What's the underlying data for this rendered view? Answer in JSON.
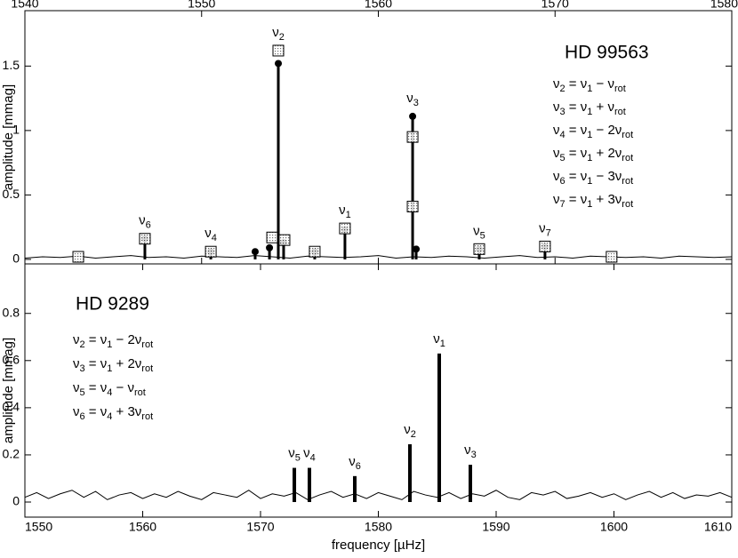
{
  "chart_data": [
    {
      "type": "stem",
      "title": "HD 99563",
      "ylabel": "amplitude [mmag]",
      "xaxis_position": "top",
      "xlim": [
        1540,
        1580
      ],
      "xticks": [
        1540,
        1550,
        1560,
        1570,
        1580
      ],
      "ylim": [
        -0.035,
        1.93
      ],
      "yticks": [
        0,
        {
          "value": 0.5,
          "label": "0.5"
        },
        1,
        {
          "value": 1.5,
          "label": "1.5"
        }
      ],
      "equations": [
        [
          "ν",
          "2",
          " = ν",
          "1",
          " − ν",
          "rot"
        ],
        [
          "ν",
          "3",
          " = ν",
          "1",
          " + ν",
          "rot"
        ],
        [
          "ν",
          "4",
          " = ν",
          "1",
          " − 2ν",
          "rot"
        ],
        [
          "ν",
          "5",
          " = ν",
          "1",
          " + 2ν",
          "rot"
        ],
        [
          "ν",
          "6",
          " = ν",
          "1",
          " − 3ν",
          "rot"
        ],
        [
          "ν",
          "7",
          " = ν",
          "1",
          " + 3ν",
          "rot"
        ]
      ],
      "peaks": {
        "x": [
          1546.79,
          1550.52,
          1553.03,
          1553.84,
          1554.34,
          1554.64,
          1556.4,
          1558.11,
          1561.94,
          1562.14,
          1565.71,
          1569.43
        ],
        "values": [
          0.16,
          0.06,
          0.06,
          0.09,
          1.52,
          0.13,
          0.06,
          0.23,
          1.11,
          0.08,
          0.08,
          0.1
        ],
        "labels": [
          [
            "ν",
            "6"
          ],
          [
            "ν",
            "4"
          ],
          null,
          null,
          [
            "ν",
            "2"
          ],
          null,
          null,
          [
            "ν",
            "1"
          ],
          [
            "ν",
            "3"
          ],
          null,
          [
            "ν",
            "5"
          ],
          [
            "ν",
            "7"
          ]
        ]
      },
      "squares": {
        "x": [
          1543.02,
          1546.79,
          1550.52,
          1553.99,
          1554.34,
          1554.69,
          1556.4,
          1558.11,
          1561.94,
          1561.94,
          1565.71,
          1569.43,
          1573.2
        ],
        "values": [
          0.02,
          0.16,
          0.06,
          0.17,
          1.62,
          0.15,
          0.06,
          0.24,
          0.95,
          0.41,
          0.08,
          0.1,
          0.02
        ]
      },
      "noise": {
        "x": [
          1540,
          1541,
          1542,
          1543,
          1544,
          1545,
          1546,
          1547,
          1548,
          1549,
          1550,
          1551,
          1552,
          1553,
          1554,
          1555,
          1556,
          1557,
          1558,
          1559,
          1560,
          1561,
          1562,
          1563,
          1564,
          1565,
          1566,
          1567,
          1568,
          1569,
          1570,
          1571,
          1572,
          1573,
          1574,
          1575,
          1576,
          1577,
          1578,
          1579,
          1580
        ],
        "values": [
          0.01,
          0.02,
          0.015,
          0.025,
          0.01,
          0.02,
          0.03,
          0.015,
          0.02,
          0.01,
          0.025,
          0.02,
          0.015,
          0.03,
          0.02,
          0.01,
          0.025,
          0.02,
          0.015,
          0.02,
          0.03,
          0.01,
          0.02,
          0.015,
          0.025,
          0.02,
          0.01,
          0.02,
          0.03,
          0.015,
          0.02,
          0.01,
          0.025,
          0.02,
          0.015,
          0.02,
          0.01,
          0.025,
          0.02,
          0.015,
          0.02
        ]
      }
    },
    {
      "type": "stem",
      "title": "HD 9289",
      "ylabel": "amplitude [mmag]",
      "xlabel": "frequency [µHz]",
      "xaxis_position": "bottom",
      "xlim": [
        1550,
        1610
      ],
      "xticks": [
        1550,
        1560,
        1570,
        1580,
        1590,
        1600,
        1610
      ],
      "ylim": [
        -0.064,
        1.01
      ],
      "yticks": [
        0,
        {
          "value": 0.2,
          "label": "0.2"
        },
        {
          "value": 0.4,
          "label": "0.4"
        },
        {
          "value": 0.6,
          "label": "0.6"
        },
        {
          "value": 0.8,
          "label": "0.8"
        }
      ],
      "equations": [
        [
          "ν",
          "2",
          " = ν",
          "1",
          " − 2ν",
          "rot"
        ],
        [
          "ν",
          "3",
          " = ν",
          "1",
          " + 2ν",
          "rot"
        ],
        [
          "ν",
          "5",
          " = ν",
          "4",
          " − ν",
          "rot"
        ],
        [
          "ν",
          "6",
          " = ν",
          "4",
          " + 3ν",
          "rot"
        ]
      ],
      "peaks": {
        "x": [
          1572.87,
          1574.15,
          1578.0,
          1582.68,
          1585.17,
          1587.81
        ],
        "values": [
          0.145,
          0.145,
          0.11,
          0.245,
          0.63,
          0.158
        ],
        "labels": [
          [
            "ν",
            "5"
          ],
          [
            "ν",
            "4"
          ],
          [
            "ν",
            "6"
          ],
          [
            "ν",
            "2"
          ],
          [
            "ν",
            "1"
          ],
          [
            "ν",
            "3"
          ]
        ]
      },
      "noise": {
        "x": [
          1550,
          1551,
          1552,
          1553,
          1554,
          1555,
          1556,
          1557,
          1558,
          1559,
          1560,
          1561,
          1562,
          1563,
          1564,
          1565,
          1566,
          1567,
          1568,
          1569,
          1570,
          1571,
          1572,
          1573,
          1574,
          1575,
          1576,
          1577,
          1578,
          1579,
          1580,
          1581,
          1582,
          1583,
          1584,
          1585,
          1586,
          1587,
          1588,
          1589,
          1590,
          1591,
          1592,
          1593,
          1594,
          1595,
          1596,
          1597,
          1598,
          1599,
          1600,
          1601,
          1602,
          1603,
          1604,
          1605,
          1606,
          1607,
          1608,
          1609,
          1610
        ],
        "values": [
          0.02,
          0.04,
          0.015,
          0.035,
          0.05,
          0.02,
          0.045,
          0.01,
          0.03,
          0.04,
          0.015,
          0.035,
          0.02,
          0.045,
          0.025,
          0.01,
          0.04,
          0.03,
          0.02,
          0.05,
          0.015,
          0.035,
          0.025,
          0.04,
          0.01,
          0.03,
          0.045,
          0.02,
          0.035,
          0.015,
          0.04,
          0.025,
          0.01,
          0.045,
          0.03,
          0.02,
          0.04,
          0.015,
          0.035,
          0.025,
          0.05,
          0.02,
          0.01,
          0.04,
          0.03,
          0.045,
          0.015,
          0.025,
          0.04,
          0.02,
          0.035,
          0.01,
          0.03,
          0.045,
          0.02,
          0.04,
          0.015,
          0.03,
          0.025,
          0.04,
          0.02
        ]
      }
    }
  ]
}
